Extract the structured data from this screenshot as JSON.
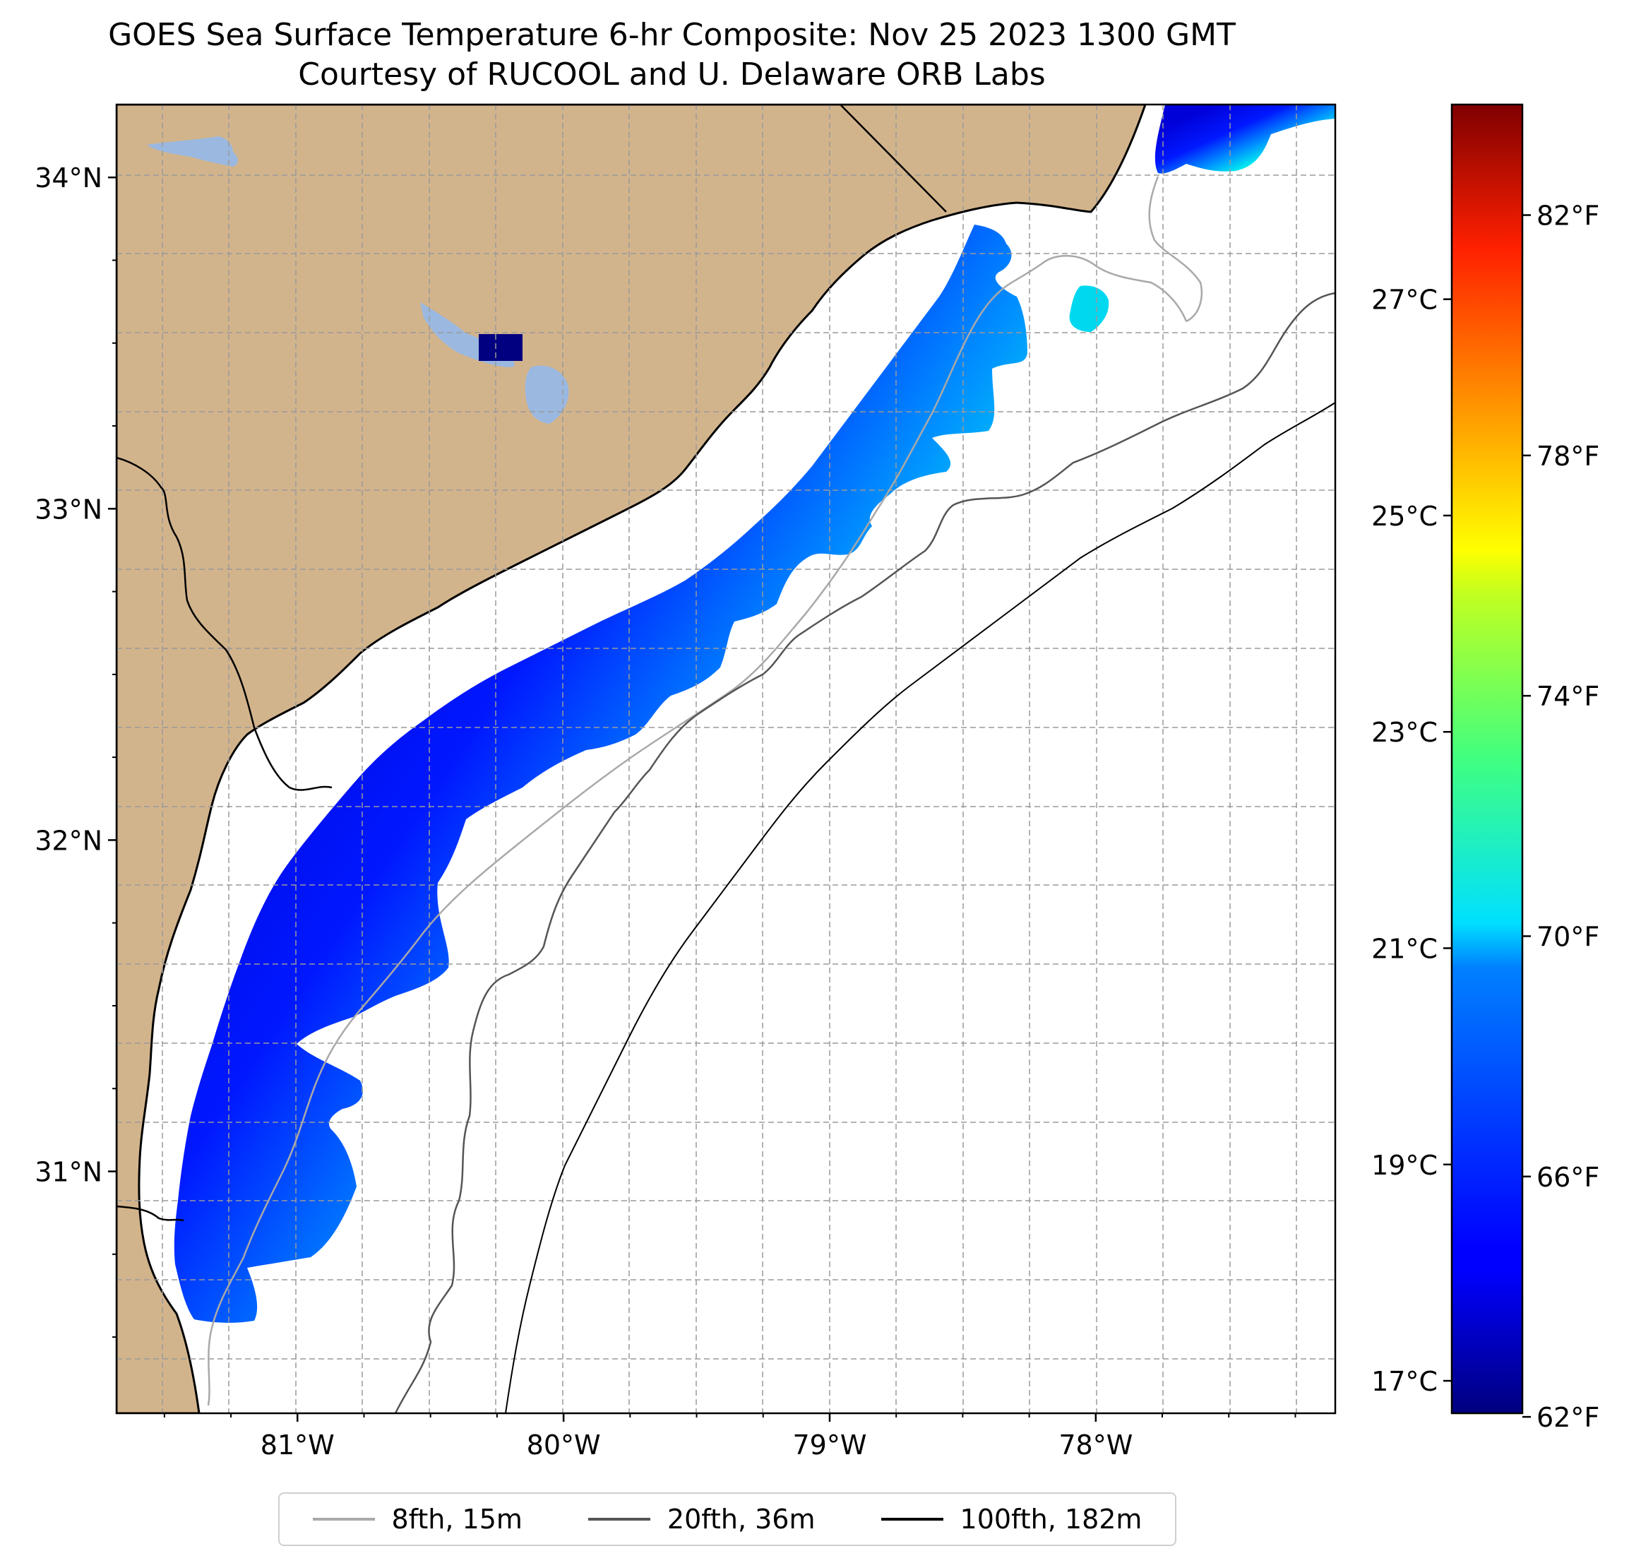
{
  "title": {
    "line1": "GOES Sea Surface Temperature 6-hr Composite: Nov 25 2023 1300 GMT",
    "line2": "Courtesy of RUCOOL and U. Delaware ORB Labs"
  },
  "map": {
    "extent": {
      "lon_min": -81.68,
      "lon_max": -77.1,
      "lat_min": 30.27,
      "lat_max": 34.22
    },
    "lat_ticks": [
      {
        "value": 34,
        "label": "34°N"
      },
      {
        "value": 33,
        "label": "33°N"
      },
      {
        "value": 32,
        "label": "32°N"
      },
      {
        "value": 31,
        "label": "31°N"
      }
    ],
    "lon_ticks": [
      {
        "value": -81,
        "label": "81°W"
      },
      {
        "value": -80,
        "label": "80°W"
      },
      {
        "value": -79,
        "label": "79°W"
      },
      {
        "value": -78,
        "label": "78°W"
      }
    ],
    "colors": {
      "land": "#d2b48c",
      "lake": "#9ab8e0",
      "ocean": "#ffffff",
      "grid": "#b0b0b0",
      "coast": "#000000"
    }
  },
  "colorbar": {
    "colormap": "jet",
    "celsius": {
      "min": 16.7,
      "max": 28.8
    },
    "left_ticks": [
      {
        "value": 17,
        "label": "17°C"
      },
      {
        "value": 19,
        "label": "19°C"
      },
      {
        "value": 21,
        "label": "21°C"
      },
      {
        "value": 23,
        "label": "23°C"
      },
      {
        "value": 25,
        "label": "25°C"
      },
      {
        "value": 27,
        "label": "27°C"
      }
    ],
    "right_ticks": [
      {
        "value": 62,
        "label": "62°F"
      },
      {
        "value": 66,
        "label": "66°F"
      },
      {
        "value": 70,
        "label": "70°F"
      },
      {
        "value": 74,
        "label": "74°F"
      },
      {
        "value": 78,
        "label": "78°F"
      },
      {
        "value": 82,
        "label": "82°F"
      }
    ]
  },
  "legend": {
    "items": [
      {
        "label": "8fth, 15m",
        "color": "#a9a9a9"
      },
      {
        "label": "20fth, 36m",
        "color": "#555555"
      },
      {
        "label": "100fth, 182m",
        "color": "#000000"
      }
    ]
  }
}
